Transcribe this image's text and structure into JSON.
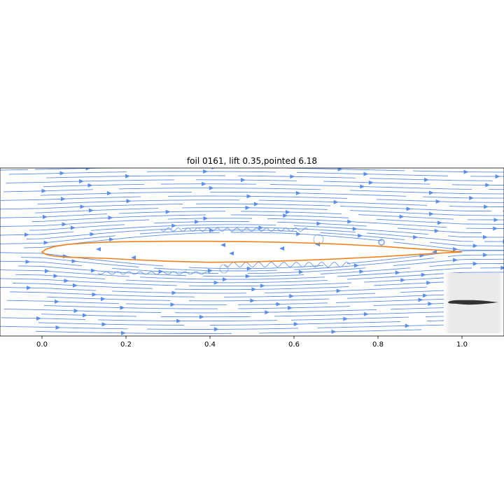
{
  "chart_data": {
    "type": "streamplot",
    "title": "foil 0161, lift  0.35,pointed  6.18",
    "xlabel": "",
    "ylabel": "",
    "xlim": [
      -0.1,
      1.1
    ],
    "ylim": [
      -0.2,
      0.2
    ],
    "x_ticks": [
      0.0,
      0.2,
      0.4,
      0.6,
      0.8,
      1.0
    ],
    "x_tick_labels": [
      "0.0",
      "0.2",
      "0.4",
      "0.6",
      "0.8",
      "1.0"
    ],
    "y_ticks_visible": false,
    "grid": false,
    "legend": "none",
    "colors": {
      "streamlines": "#5b8ee6",
      "foil": "#f0821e",
      "inset": "#333333"
    },
    "foil": {
      "name": "foil 0161",
      "lift": 0.35,
      "pointed": 6.18,
      "upper_surface": [
        [
          0.0,
          0.0
        ],
        [
          0.01,
          0.007
        ],
        [
          0.03,
          0.013
        ],
        [
          0.06,
          0.018
        ],
        [
          0.1,
          0.021
        ],
        [
          0.15,
          0.0235
        ],
        [
          0.2,
          0.0245
        ],
        [
          0.3,
          0.0255
        ],
        [
          0.4,
          0.0255
        ],
        [
          0.5,
          0.0245
        ],
        [
          0.6,
          0.0225
        ],
        [
          0.7,
          0.019
        ],
        [
          0.8,
          0.014
        ],
        [
          0.9,
          0.007
        ],
        [
          0.95,
          0.004
        ],
        [
          1.0,
          0.0
        ]
      ],
      "lower_surface": [
        [
          0.0,
          0.0
        ],
        [
          0.01,
          -0.006
        ],
        [
          0.03,
          -0.01
        ],
        [
          0.06,
          -0.0125
        ],
        [
          0.1,
          -0.0135
        ],
        [
          0.15,
          -0.015
        ],
        [
          0.2,
          -0.0175
        ],
        [
          0.3,
          -0.022
        ],
        [
          0.4,
          -0.0245
        ],
        [
          0.5,
          -0.0235
        ],
        [
          0.6,
          -0.0205
        ],
        [
          0.7,
          -0.0165
        ],
        [
          0.8,
          -0.0115
        ],
        [
          0.9,
          -0.0055
        ],
        [
          0.95,
          -0.0025
        ],
        [
          1.0,
          0.0
        ]
      ]
    }
  }
}
